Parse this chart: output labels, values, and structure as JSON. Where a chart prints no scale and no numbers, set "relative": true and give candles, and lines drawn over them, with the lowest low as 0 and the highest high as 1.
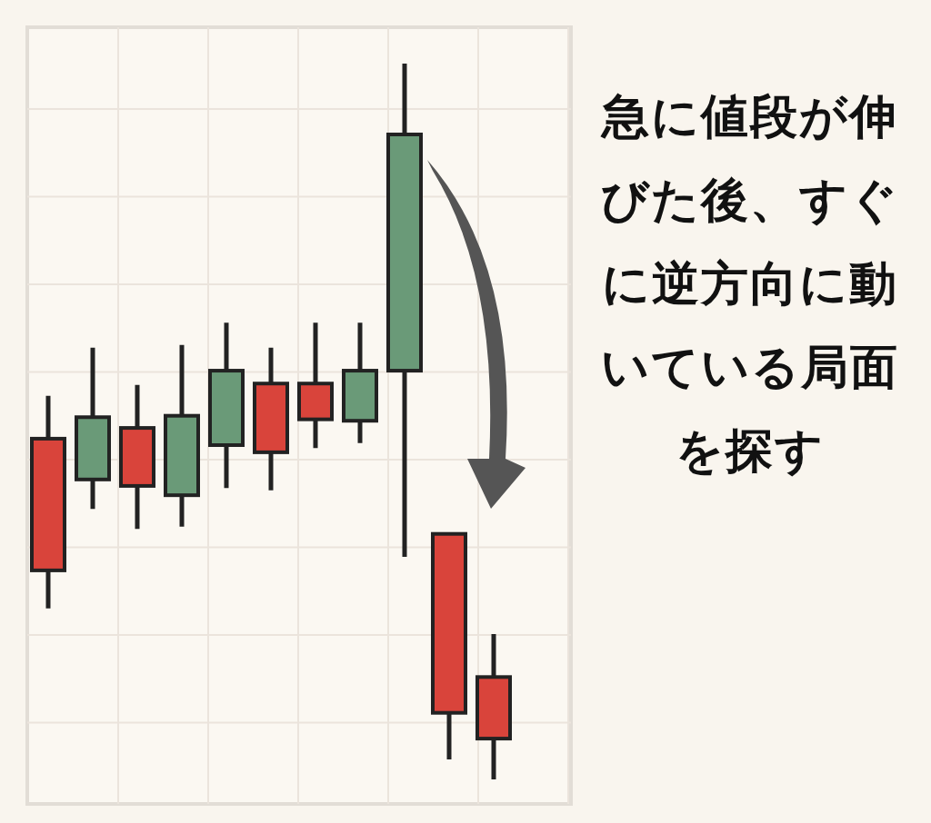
{
  "chart_data": {
    "type": "candlestick",
    "title": "急に値段が伸びた後、すぐに逆方向に動いている局面を探す",
    "relative": true,
    "grid": true,
    "categories": [
      null,
      null,
      null,
      null,
      null,
      null,
      null,
      null,
      null,
      null,
      null
    ],
    "ohlc": [
      [
        0.476,
        0.536,
        0.239,
        0.292
      ],
      [
        0.419,
        0.603,
        0.378,
        0.506
      ],
      [
        0.491,
        0.551,
        0.35,
        0.41
      ],
      [
        0.397,
        0.607,
        0.353,
        0.508
      ],
      [
        0.467,
        0.638,
        0.407,
        0.571
      ],
      [
        0.553,
        0.603,
        0.404,
        0.457
      ],
      [
        0.553,
        0.638,
        0.463,
        0.503
      ],
      [
        0.501,
        0.638,
        0.47,
        0.571
      ],
      [
        0.571,
        1,
        0.311,
        0.901
      ],
      [
        0.343,
        0.343,
        0.028,
        0.093
      ],
      [
        0.143,
        0.203,
        0,
        0.057
      ]
    ],
    "colors": [
      "#d9443b",
      "#6a9a78",
      "#d9443b",
      "#6a9a78",
      "#6a9a78",
      "#d9443b",
      "#d9443b",
      "#6a9a78",
      "#6a9a78",
      "#d9443b",
      "#d9443b"
    ]
  }
}
